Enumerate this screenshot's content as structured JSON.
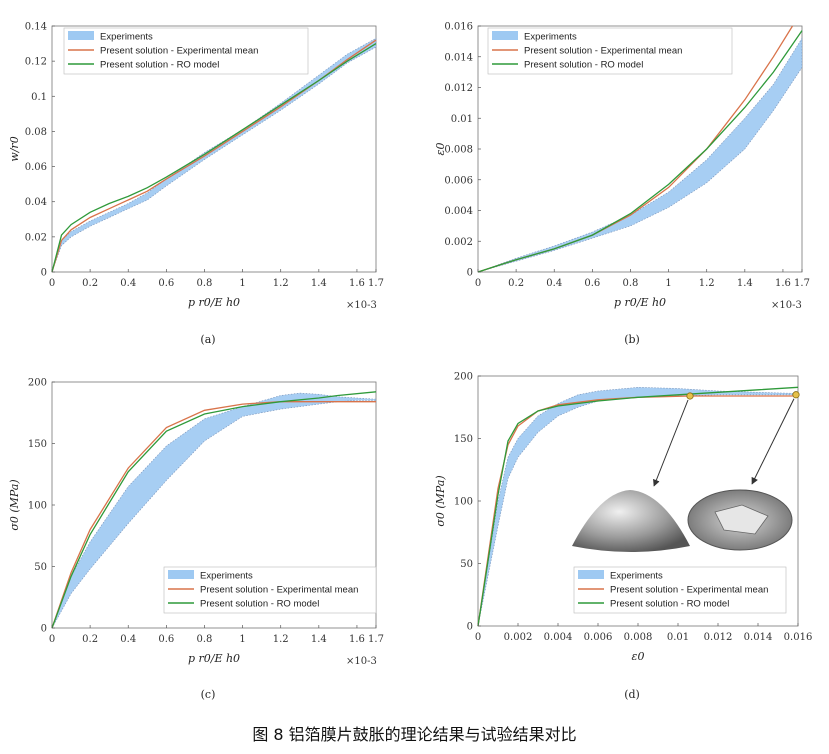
{
  "caption": "图 8 铝箔膜片鼓胀的理论结果与试验结果对比",
  "colors": {
    "band": "#9ec9f2",
    "band_edge": "#6a86b0",
    "red": "#d9734a",
    "green": "#2f9a3a"
  },
  "chart_data": [
    {
      "panel": "(a)",
      "type": "line",
      "xlabel": "p r0/E h0",
      "ylabel": "w/r0",
      "xmult": "×10-3",
      "xlim": [
        0,
        1.7
      ],
      "ylim": [
        0,
        0.14
      ],
      "xticks": [
        "0",
        "0.2",
        "0.4",
        "0.6",
        "0.8",
        "1",
        "1.2",
        "1.4",
        "1.6",
        "1.7"
      ],
      "yticks": [
        "0",
        "0.02",
        "0.04",
        "0.06",
        "0.08",
        "0.1",
        "0.12",
        "0.14"
      ],
      "legend": "top-left",
      "series": [
        {
          "name": "Experiments",
          "kind": "band",
          "x": [
            0,
            0.05,
            0.1,
            0.2,
            0.3,
            0.4,
            0.5,
            0.6,
            0.8,
            1.0,
            1.2,
            1.4,
            1.55,
            1.7
          ],
          "lo": [
            0,
            0.015,
            0.02,
            0.026,
            0.031,
            0.036,
            0.041,
            0.049,
            0.064,
            0.078,
            0.092,
            0.107,
            0.119,
            0.128
          ],
          "hi": [
            0,
            0.018,
            0.023,
            0.029,
            0.034,
            0.039,
            0.045,
            0.053,
            0.068,
            0.081,
            0.096,
            0.112,
            0.124,
            0.133
          ]
        },
        {
          "name": "Present solution - Experimental mean",
          "kind": "line",
          "color": "red",
          "x": [
            0,
            0.05,
            0.1,
            0.2,
            0.3,
            0.4,
            0.5,
            0.6,
            0.8,
            1.0,
            1.2,
            1.4,
            1.55,
            1.7
          ],
          "y": [
            0,
            0.018,
            0.024,
            0.031,
            0.036,
            0.041,
            0.046,
            0.053,
            0.066,
            0.08,
            0.094,
            0.109,
            0.121,
            0.132
          ]
        },
        {
          "name": "Present solution - RO model",
          "kind": "line",
          "color": "green",
          "x": [
            0,
            0.05,
            0.1,
            0.2,
            0.3,
            0.4,
            0.5,
            0.6,
            0.8,
            1.0,
            1.2,
            1.4,
            1.55,
            1.7
          ],
          "y": [
            0,
            0.021,
            0.027,
            0.034,
            0.039,
            0.043,
            0.048,
            0.054,
            0.067,
            0.081,
            0.095,
            0.109,
            0.12,
            0.13
          ]
        }
      ]
    },
    {
      "panel": "(b)",
      "type": "line",
      "xlabel": "p r0/E h0",
      "ylabel": "ε0",
      "xmult": "×10-3",
      "xlim": [
        0,
        1.7
      ],
      "ylim": [
        0,
        0.016
      ],
      "xticks": [
        "0",
        "0.2",
        "0.4",
        "0.6",
        "0.8",
        "1",
        "1.2",
        "1.4",
        "1.6",
        "1.7"
      ],
      "yticks": [
        "0",
        "0.002",
        "0.004",
        "0.006",
        "0.008",
        "0.01",
        "0.012",
        "0.014",
        "0.016"
      ],
      "legend": "top-left",
      "series": [
        {
          "name": "Experiments",
          "kind": "band",
          "x": [
            0,
            0.2,
            0.4,
            0.6,
            0.8,
            1.0,
            1.2,
            1.4,
            1.55,
            1.7
          ],
          "lo": [
            0,
            0.0007,
            0.0014,
            0.0022,
            0.003,
            0.0042,
            0.0058,
            0.008,
            0.0105,
            0.0133
          ],
          "hi": [
            0,
            0.0009,
            0.0017,
            0.0026,
            0.0037,
            0.0052,
            0.0073,
            0.01,
            0.0122,
            0.0152
          ]
        },
        {
          "name": "Present solution - Experimental mean",
          "kind": "line",
          "color": "red",
          "x": [
            0,
            0.2,
            0.4,
            0.6,
            0.8,
            1.0,
            1.2,
            1.4,
            1.55,
            1.65
          ],
          "y": [
            0,
            0.0008,
            0.0015,
            0.0024,
            0.0037,
            0.0055,
            0.008,
            0.0112,
            0.014,
            0.016
          ]
        },
        {
          "name": "Present solution - RO model",
          "kind": "line",
          "color": "green",
          "x": [
            0,
            0.2,
            0.4,
            0.6,
            0.8,
            1.0,
            1.2,
            1.4,
            1.55,
            1.7
          ],
          "y": [
            0,
            0.0008,
            0.0015,
            0.0024,
            0.0038,
            0.0057,
            0.008,
            0.0107,
            0.013,
            0.0157
          ]
        }
      ]
    },
    {
      "panel": "(c)",
      "type": "line",
      "xlabel": "p r0/E h0",
      "ylabel": "σ0 (MPa)",
      "xmult": "×10-3",
      "xlim": [
        0,
        1.7
      ],
      "ylim": [
        0,
        200
      ],
      "xticks": [
        "0",
        "0.2",
        "0.4",
        "0.6",
        "0.8",
        "1",
        "1.2",
        "1.4",
        "1.6",
        "1.7"
      ],
      "yticks": [
        "0",
        "50",
        "100",
        "150",
        "200"
      ],
      "legend": "bottom-right",
      "series": [
        {
          "name": "Experiments",
          "kind": "band",
          "x": [
            0,
            0.1,
            0.2,
            0.4,
            0.6,
            0.8,
            1.0,
            1.2,
            1.3,
            1.4,
            1.5,
            1.6,
            1.7
          ],
          "lo": [
            0,
            28,
            48,
            85,
            120,
            152,
            172,
            178,
            180,
            182,
            184,
            185,
            185
          ],
          "hi": [
            0,
            42,
            70,
            115,
            148,
            170,
            180,
            189,
            191,
            190,
            188,
            187,
            186
          ]
        },
        {
          "name": "Present solution - Experimental mean",
          "kind": "line",
          "color": "red",
          "x": [
            0,
            0.1,
            0.2,
            0.4,
            0.6,
            0.8,
            1.0,
            1.2,
            1.4,
            1.5,
            1.7
          ],
          "y": [
            0,
            45,
            80,
            130,
            163,
            177,
            182,
            184,
            184,
            184,
            184
          ]
        },
        {
          "name": "Present solution - RO model",
          "kind": "line",
          "color": "green",
          "x": [
            0,
            0.1,
            0.2,
            0.4,
            0.6,
            0.8,
            1.0,
            1.2,
            1.4,
            1.5,
            1.7
          ],
          "y": [
            0,
            42,
            76,
            127,
            160,
            174,
            180,
            184,
            187,
            189,
            192
          ]
        }
      ]
    },
    {
      "panel": "(d)",
      "type": "line",
      "xlabel": "ε0",
      "ylabel": "σ0 (MPa)",
      "xmult": "",
      "xlim": [
        0,
        0.016
      ],
      "ylim": [
        0,
        200
      ],
      "xticks": [
        "0",
        "0.002",
        "0.004",
        "0.006",
        "0.008",
        "0.01",
        "0.012",
        "0.014",
        "0.016"
      ],
      "yticks": [
        "0",
        "50",
        "100",
        "150",
        "200"
      ],
      "legend": "bottom-left",
      "series": [
        {
          "name": "Experiments",
          "kind": "band",
          "x": [
            0,
            0.0005,
            0.001,
            0.0015,
            0.002,
            0.003,
            0.004,
            0.005,
            0.006,
            0.008,
            0.01,
            0.012,
            0.014,
            0.016
          ],
          "lo": [
            0,
            40,
            80,
            118,
            135,
            155,
            168,
            175,
            180,
            183,
            184,
            185,
            185,
            185
          ],
          "hi": [
            0,
            50,
            100,
            135,
            150,
            168,
            178,
            185,
            188,
            191,
            190,
            188,
            187,
            186
          ]
        },
        {
          "name": "Present solution - Experimental mean",
          "kind": "line",
          "color": "red",
          "x": [
            0,
            0.0005,
            0.001,
            0.0015,
            0.002,
            0.003,
            0.004,
            0.006,
            0.008,
            0.0106,
            0.014,
            0.016
          ],
          "y": [
            0,
            55,
            110,
            145,
            160,
            172,
            177,
            181,
            183,
            184,
            184,
            184
          ]
        },
        {
          "name": "Present solution - RO model",
          "kind": "line",
          "color": "green",
          "x": [
            0,
            0.0005,
            0.001,
            0.0015,
            0.002,
            0.003,
            0.004,
            0.006,
            0.008,
            0.01,
            0.012,
            0.014,
            0.016
          ],
          "y": [
            0,
            52,
            105,
            148,
            162,
            172,
            176,
            180,
            183,
            185,
            187,
            189,
            191
          ]
        }
      ]
    }
  ]
}
